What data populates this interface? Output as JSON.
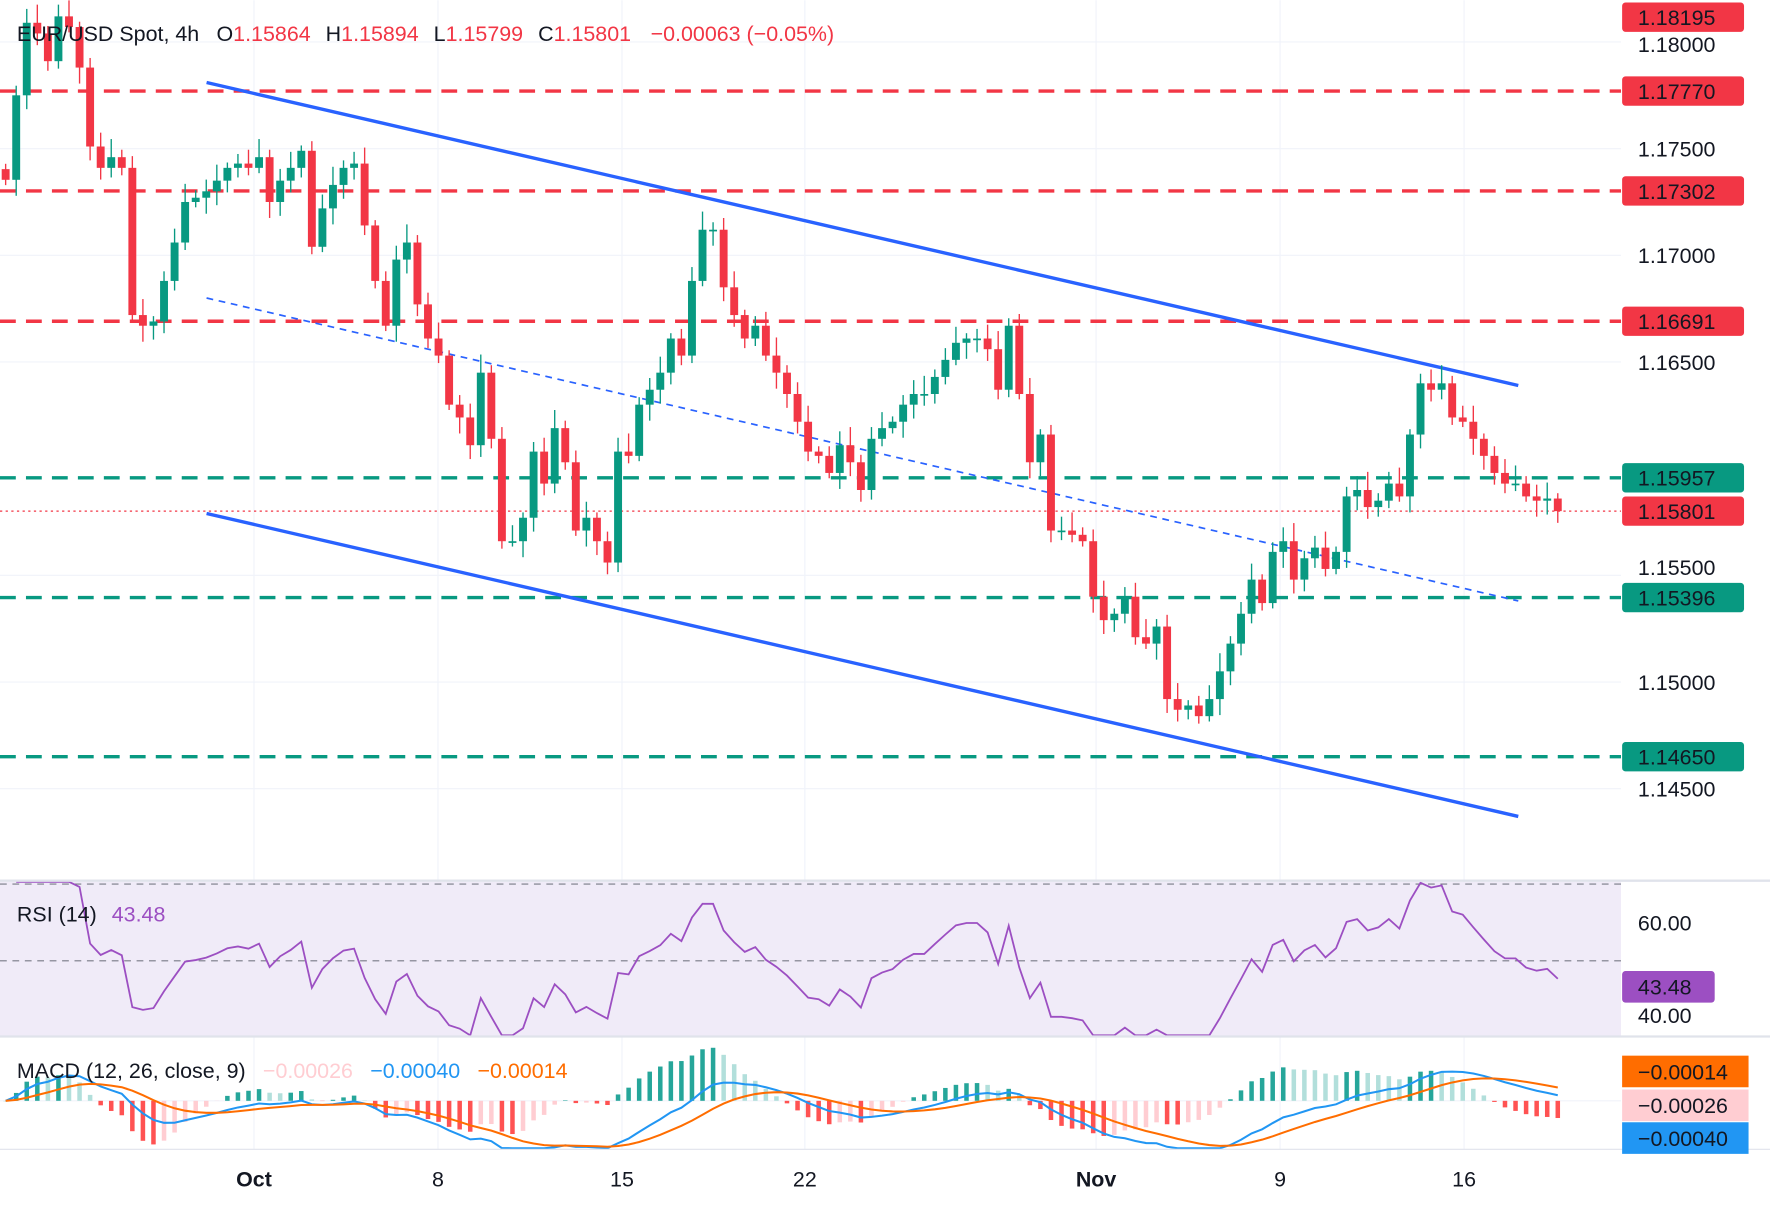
{
  "header": {
    "symbol": "EUR/USD Spot, 4h",
    "o_label": "O",
    "o_value": "1.15864",
    "h_label": "H",
    "h_value": "1.15894",
    "l_label": "L",
    "l_value": "1.15799",
    "c_label": "C",
    "c_value": "1.15801",
    "change": "−0.00063 (−0.05%)"
  },
  "colors": {
    "up": "#089981",
    "down": "#f23645",
    "trendline": "#2962ff",
    "rsi": "#9c4fc2",
    "macd": "#2196f3",
    "signal": "#ff6d00",
    "resistance": "#f23645",
    "support": "#089981"
  },
  "chart_data": {
    "type": "candlestick",
    "title": "EUR/USD Spot, 4h",
    "price_ticks": [
      "1.18000",
      "1.17500",
      "1.17000",
      "1.16500",
      "1.15500",
      "1.15000",
      "1.14500"
    ],
    "x_tick_labels": [
      {
        "label": "Oct",
        "bold": true
      },
      {
        "label": "8",
        "bold": false
      },
      {
        "label": "15",
        "bold": false
      },
      {
        "label": "22",
        "bold": false
      },
      {
        "label": "Nov",
        "bold": true
      },
      {
        "label": "9",
        "bold": false
      },
      {
        "label": "16",
        "bold": false
      }
    ],
    "ylim": [
      1.1425,
      1.183
    ],
    "closes": [
      1.17354,
      1.1775,
      1.1809,
      1.1804,
      1.1791,
      1.1812,
      1.1807,
      1.1788,
      1.1751,
      1.1741,
      1.1746,
      1.1741,
      1.1672,
      1.1667,
      1.1669,
      1.1688,
      1.1706,
      1.1725,
      1.1727,
      1.173,
      1.1735,
      1.1741,
      1.1743,
      1.1741,
      1.1746,
      1.1725,
      1.1735,
      1.1741,
      1.1749,
      1.1704,
      1.1722,
      1.1733,
      1.1741,
      1.1743,
      1.1714,
      1.1688,
      1.1667,
      1.1698,
      1.1706,
      1.1677,
      1.1661,
      1.1653,
      1.163,
      1.1624,
      1.1611,
      1.1645,
      1.1614,
      1.1566,
      1.1566,
      1.1577,
      1.1608,
      1.1593,
      1.1619,
      1.1603,
      1.1571,
      1.1577,
      1.1566,
      1.1556,
      1.1608,
      1.1606,
      1.163,
      1.1637,
      1.1645,
      1.1661,
      1.1653,
      1.1688,
      1.1712,
      1.1712,
      1.1685,
      1.1672,
      1.1661,
      1.1667,
      1.1653,
      1.1645,
      1.1635,
      1.1622,
      1.1608,
      1.1606,
      1.1598,
      1.1611,
      1.1603,
      1.159,
      1.1614,
      1.1619,
      1.1622,
      1.163,
      1.1635,
      1.1635,
      1.1643,
      1.1651,
      1.1659,
      1.1661,
      1.1661,
      1.1656,
      1.1637,
      1.1667,
      1.1635,
      1.1603,
      1.1616,
      1.1571,
      1.1571,
      1.1569,
      1.1566,
      1.154,
      1.1529,
      1.1532,
      1.154,
      1.1521,
      1.1518,
      1.1526,
      1.1492,
      1.1487,
      1.1489,
      1.1484,
      1.1492,
      1.1505,
      1.1518,
      1.1532,
      1.1548,
      1.1537,
      1.1561,
      1.1566,
      1.1548,
      1.1558,
      1.1563,
      1.1553,
      1.1561,
      1.1587,
      1.159,
      1.1582,
      1.1585,
      1.1593,
      1.1587,
      1.1616,
      1.164,
      1.1637,
      1.164,
      1.1624,
      1.1622,
      1.1614,
      1.1606,
      1.1598,
      1.1593,
      1.1593,
      1.1587,
      1.1585,
      1.1586,
      1.15801
    ],
    "high_label": {
      "value": "1.18195",
      "color": "#f23645"
    },
    "levels": [
      {
        "value": 1.1777,
        "label": "1.17770",
        "kind": "resistance"
      },
      {
        "value": 1.17302,
        "label": "1.17302",
        "kind": "resistance"
      },
      {
        "value": 1.16691,
        "label": "1.16691",
        "kind": "resistance"
      },
      {
        "value": 1.15957,
        "label": "1.15957",
        "kind": "support"
      },
      {
        "value": 1.15396,
        "label": "1.15396",
        "kind": "support"
      },
      {
        "value": 1.1465,
        "label": "1.14650",
        "kind": "support"
      }
    ],
    "last_price": {
      "value": 1.15801,
      "label": "1.15801"
    },
    "trendlines": [
      {
        "name": "channel-upper",
        "style": "solid",
        "start_price": 1.1781,
        "end_price": 1.1639
      },
      {
        "name": "channel-middle",
        "style": "dashed",
        "start_price": 1.168,
        "end_price": 1.1538
      },
      {
        "name": "channel-lower",
        "style": "solid",
        "start_price": 1.1579,
        "end_price": 1.1437
      }
    ],
    "rsi": {
      "legend": "RSI (14)",
      "value": "43.48",
      "period": 14,
      "ticks": [
        "60.00",
        "40.00"
      ],
      "bands": [
        70,
        50,
        30
      ]
    },
    "macd": {
      "legend": "MACD (12, 26, close, 9)",
      "histogram": "−0.00026",
      "macd": "−0.00040",
      "signal": "−0.00014",
      "axis_labels": [
        "−0.00014",
        "−0.00026",
        "−0.00040"
      ]
    }
  }
}
